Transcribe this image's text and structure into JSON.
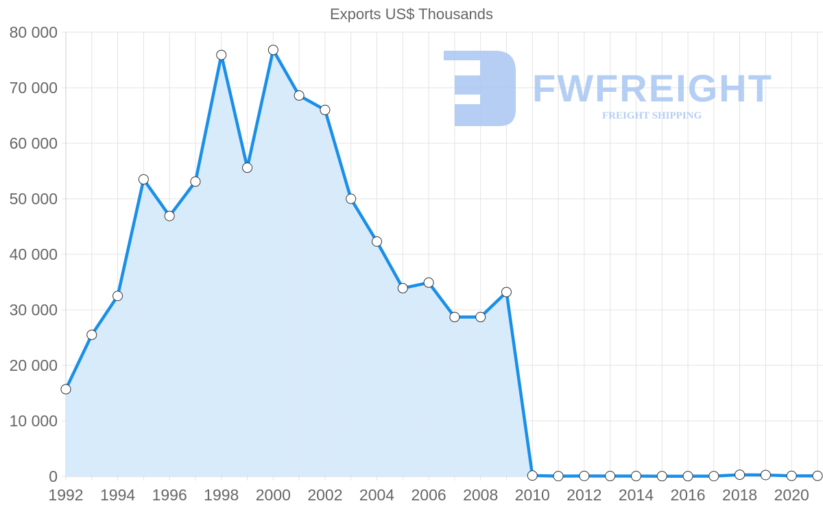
{
  "chart_data": {
    "type": "line",
    "title": "Exports US$ Thousands",
    "xlabel": "",
    "ylabel": "",
    "x": [
      1992,
      1993,
      1994,
      1995,
      1996,
      1997,
      1998,
      1999,
      2000,
      2001,
      2002,
      2003,
      2004,
      2005,
      2006,
      2007,
      2008,
      2009,
      2010,
      2011,
      2012,
      2013,
      2014,
      2015,
      2016,
      2017,
      2018,
      2019,
      2020,
      2021
    ],
    "series": [
      {
        "name": "Exports US$ Thousands",
        "values": [
          15700,
          25500,
          32500,
          53500,
          46900,
          53100,
          75900,
          55600,
          76800,
          68600,
          66000,
          50000,
          42300,
          33900,
          34900,
          28700,
          28700,
          33200,
          150,
          50,
          80,
          60,
          60,
          40,
          40,
          50,
          300,
          250,
          100,
          100
        ]
      }
    ],
    "ylim": [
      0,
      80000
    ],
    "yticks": [
      "0",
      "10 000",
      "20 000",
      "30 000",
      "40 000",
      "50 000",
      "60 000",
      "70 000",
      "80 000"
    ],
    "ytick_values": [
      0,
      10000,
      20000,
      30000,
      40000,
      50000,
      60000,
      70000,
      80000
    ],
    "xticks": [
      "1992",
      "1994",
      "1996",
      "1998",
      "2000",
      "2002",
      "2004",
      "2006",
      "2008",
      "2010",
      "2012",
      "2014",
      "2016",
      "2018",
      "2020"
    ],
    "grid": true,
    "legend": "none",
    "fill": true,
    "colors": {
      "line": "#1a8fe8",
      "fill": "#d6eafb",
      "grid": "#e3e3e3",
      "text": "#666666",
      "point_fill": "#ffffff",
      "point_stroke": "#333333"
    }
  },
  "watermark": {
    "brand": "FWFREIGHT",
    "tagline": "FREIGHT SHIPPING",
    "color": "#a9c6f2"
  }
}
